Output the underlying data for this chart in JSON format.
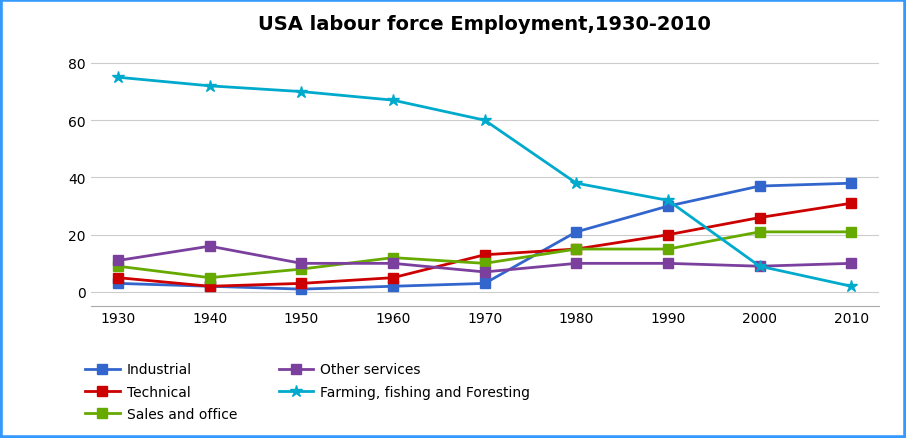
{
  "title": "USA labour force Employment,1930-2010",
  "years": [
    1930,
    1940,
    1950,
    1960,
    1970,
    1980,
    1990,
    2000,
    2010
  ],
  "series_order": [
    "Industrial",
    "Technical",
    "Sales and office",
    "Other services",
    "Farming, fishing and Foresting"
  ],
  "series": {
    "Industrial": {
      "values": [
        3,
        2,
        1,
        2,
        3,
        21,
        30,
        37,
        38
      ],
      "color": "#3366CC",
      "marker": "s"
    },
    "Technical": {
      "values": [
        5,
        2,
        3,
        5,
        13,
        15,
        20,
        26,
        31
      ],
      "color": "#CC0000",
      "marker": "s"
    },
    "Sales and office": {
      "values": [
        9,
        5,
        8,
        12,
        10,
        15,
        15,
        21,
        21
      ],
      "color": "#66AA00",
      "marker": "s"
    },
    "Other services": {
      "values": [
        11,
        16,
        10,
        10,
        7,
        10,
        10,
        9,
        10
      ],
      "color": "#7B3F9E",
      "marker": "s"
    },
    "Farming, fishing and Foresting": {
      "values": [
        75,
        72,
        70,
        67,
        60,
        38,
        32,
        9,
        2
      ],
      "color": "#00AACC",
      "marker": "*"
    }
  },
  "ylim": [
    -5,
    87
  ],
  "yticks": [
    0,
    20,
    40,
    60,
    80
  ],
  "xlim": [
    1927,
    2013
  ],
  "background_color": "#FFFFFF",
  "border_color": "#3399FF",
  "title_fontsize": 14,
  "legend_fontsize": 10,
  "tick_fontsize": 10
}
